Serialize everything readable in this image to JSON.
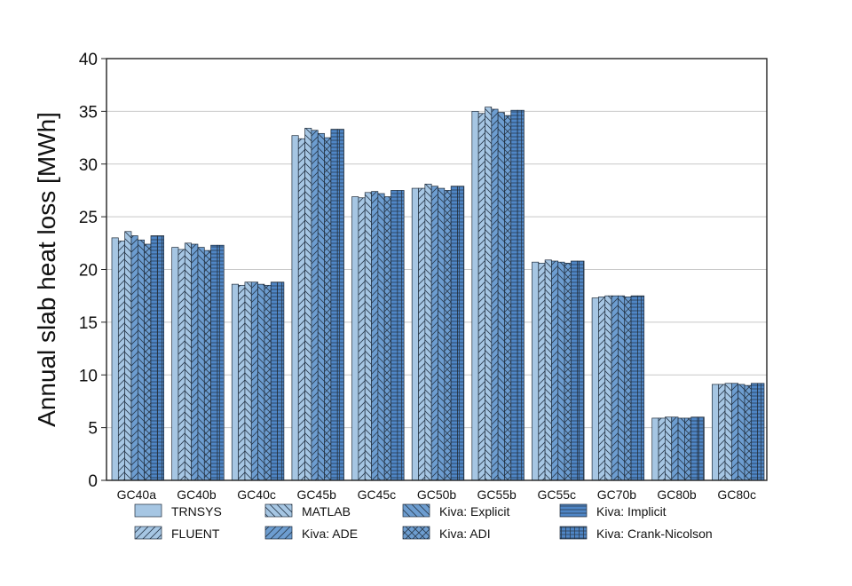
{
  "chart_data": {
    "type": "bar",
    "ylabel": "Annual slab heat loss [MWh]",
    "xlabel": "",
    "ylim": [
      0,
      40
    ],
    "yticks": [
      0,
      5,
      10,
      15,
      20,
      25,
      30,
      35,
      40
    ],
    "grid": "horizontal",
    "legend_position": "bottom",
    "categories": [
      "GC40a",
      "GC40b",
      "GC40c",
      "GC45b",
      "GC45c",
      "GC50b",
      "GC55b",
      "GC55c",
      "GC70b",
      "GC80b",
      "GC80c"
    ],
    "series": [
      {
        "name": "TRNSYS",
        "color": "#a6c6e3",
        "pattern": "none",
        "values": [
          23.0,
          22.1,
          18.6,
          32.7,
          26.9,
          27.7,
          35.0,
          20.7,
          17.3,
          5.9,
          9.1
        ]
      },
      {
        "name": "FLUENT",
        "color": "#a6c6e3",
        "pattern": "diagonal-forward",
        "values": [
          22.7,
          21.9,
          18.5,
          32.4,
          26.8,
          27.7,
          34.8,
          20.6,
          17.4,
          5.9,
          9.1
        ]
      },
      {
        "name": "MATLAB",
        "color": "#a6c6e3",
        "pattern": "diagonal-back",
        "values": [
          23.6,
          22.5,
          18.8,
          33.4,
          27.3,
          28.1,
          35.4,
          20.9,
          17.5,
          6.0,
          9.2
        ]
      },
      {
        "name": "Kiva: ADE",
        "color": "#6d9dd0",
        "pattern": "diagonal-forward",
        "values": [
          23.2,
          22.4,
          18.8,
          33.2,
          27.4,
          27.9,
          35.2,
          20.8,
          17.5,
          6.0,
          9.2
        ]
      },
      {
        "name": "Kiva: Explicit",
        "color": "#6d9dd0",
        "pattern": "diagonal-back",
        "values": [
          22.8,
          22.1,
          18.6,
          32.9,
          27.2,
          27.7,
          34.9,
          20.7,
          17.5,
          5.9,
          9.1
        ]
      },
      {
        "name": "Kiva: ADI",
        "color": "#6d9dd0",
        "pattern": "crosshatch",
        "values": [
          22.4,
          21.8,
          18.5,
          32.5,
          26.9,
          27.5,
          34.6,
          20.6,
          17.4,
          5.9,
          9.0
        ]
      },
      {
        "name": "Kiva: Implicit",
        "color": "#4f86c6",
        "pattern": "horizontal",
        "values": [
          23.2,
          22.3,
          18.8,
          33.3,
          27.5,
          27.9,
          35.1,
          20.8,
          17.5,
          6.0,
          9.2
        ]
      },
      {
        "name": "Kiva: Crank-Nicolson",
        "color": "#4f86c6",
        "pattern": "grid",
        "values": [
          23.2,
          22.3,
          18.8,
          33.3,
          27.5,
          27.9,
          35.1,
          20.8,
          17.5,
          6.0,
          9.2
        ]
      }
    ],
    "legend_columns": [
      [
        "TRNSYS",
        "FLUENT"
      ],
      [
        "MATLAB",
        "Kiva: ADE"
      ],
      [
        "Kiva: Explicit",
        "Kiva: ADI"
      ],
      [
        "Kiva: Implicit",
        "Kiva: Crank-Nicolson"
      ]
    ]
  }
}
